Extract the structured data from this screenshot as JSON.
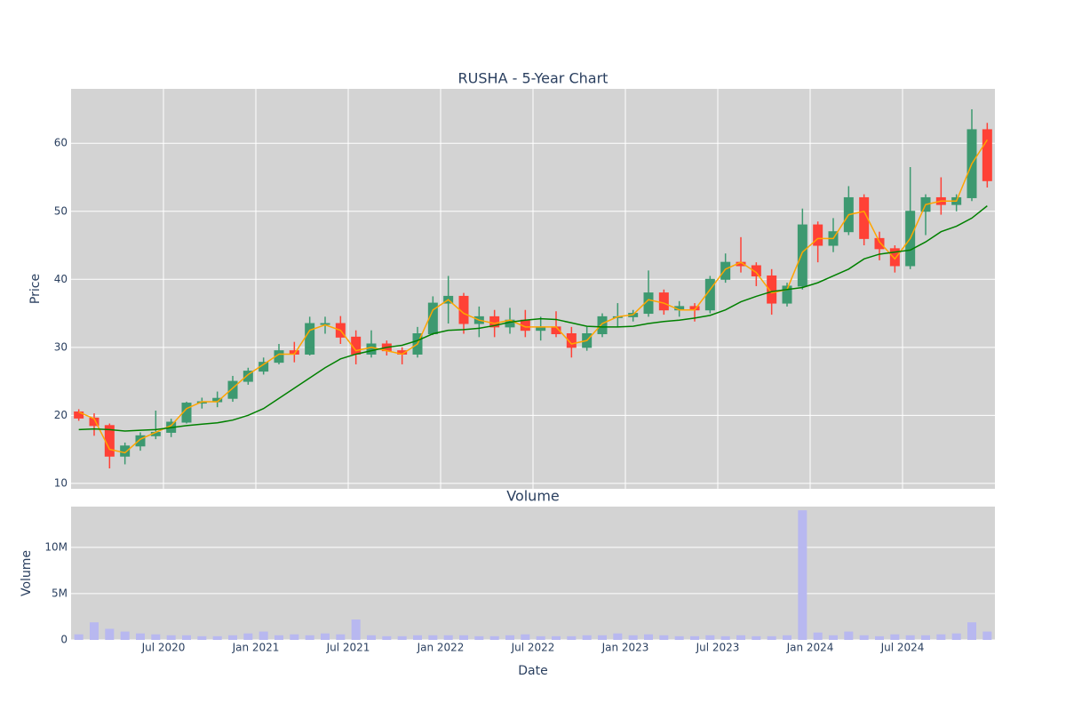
{
  "chart_data": [
    {
      "type": "candlestick",
      "title": "RUSHA - 5-Year Chart",
      "y_label": "Price",
      "x": [
        "2020-01",
        "2020-02",
        "2020-03",
        "2020-04",
        "2020-05",
        "2020-06",
        "2020-07",
        "2020-08",
        "2020-09",
        "2020-10",
        "2020-11",
        "2020-12",
        "2021-01",
        "2021-02",
        "2021-03",
        "2021-04",
        "2021-05",
        "2021-06",
        "2021-07",
        "2021-08",
        "2021-09",
        "2021-10",
        "2021-11",
        "2021-12",
        "2022-01",
        "2022-02",
        "2022-03",
        "2022-04",
        "2022-05",
        "2022-06",
        "2022-07",
        "2022-08",
        "2022-09",
        "2022-10",
        "2022-11",
        "2022-12",
        "2023-01",
        "2023-02",
        "2023-03",
        "2023-04",
        "2023-05",
        "2023-06",
        "2023-07",
        "2023-08",
        "2023-09",
        "2023-10",
        "2023-11",
        "2023-12",
        "2024-01",
        "2024-02",
        "2024-03",
        "2024-04",
        "2024-05",
        "2024-06",
        "2024-07",
        "2024-08",
        "2024-09",
        "2024-10",
        "2024-11",
        "2024-12"
      ],
      "open": [
        20.5,
        19.6,
        18.5,
        14,
        15.5,
        17,
        17.5,
        19,
        21.8,
        22,
        22.5,
        25,
        26.5,
        27.8,
        29.5,
        29,
        33.5,
        33.5,
        31.5,
        29,
        30.5,
        29.5,
        29,
        32,
        36.5,
        37.5,
        33.5,
        34.5,
        33,
        34,
        32.5,
        33,
        32,
        30,
        32,
        34.5,
        34.5,
        35,
        38,
        35.5,
        36,
        35.5,
        40,
        42.5,
        42,
        40.5,
        36.5,
        39,
        48,
        45,
        47,
        52,
        46,
        44.5,
        42,
        50,
        52,
        51,
        52,
        62
      ],
      "high": [
        20.9,
        20.3,
        18.8,
        16,
        17.5,
        20.7,
        19.5,
        22,
        22.6,
        23.5,
        25.8,
        27,
        28.5,
        30.5,
        30.8,
        34.5,
        34.5,
        34.6,
        32.5,
        32.5,
        31,
        30,
        33,
        37.5,
        40.5,
        38,
        36,
        35.5,
        35.8,
        35.5,
        34.5,
        35.3,
        33,
        33,
        35,
        36.5,
        35.5,
        41.3,
        38.5,
        36.8,
        36.5,
        40.5,
        43.8,
        46.2,
        42.5,
        41.5,
        39.5,
        50.4,
        48.5,
        49,
        53.7,
        52.5,
        47,
        45,
        56.5,
        52.5,
        55,
        52.5,
        65,
        63
      ],
      "low": [
        19.2,
        17,
        12.2,
        12.8,
        14.8,
        16.5,
        16.8,
        18.8,
        21,
        21.2,
        22,
        24.5,
        26,
        27.5,
        27.8,
        28.8,
        32,
        30.5,
        27.5,
        28.5,
        28.8,
        27.5,
        28.5,
        31.8,
        33.5,
        32,
        31.5,
        31.5,
        32,
        31.5,
        31,
        31.5,
        28.5,
        29.5,
        31.5,
        33,
        33.8,
        34.5,
        34.8,
        34.5,
        33.8,
        35,
        39.5,
        41,
        39,
        34.8,
        36,
        38.5,
        42.5,
        44,
        46.5,
        45,
        42.8,
        41,
        41.5,
        46.5,
        49.5,
        50,
        51.5,
        53.5
      ],
      "close": [
        19.6,
        18.5,
        14,
        15.5,
        17,
        17.5,
        19,
        21.8,
        22,
        22.5,
        25,
        26.5,
        27.8,
        29.5,
        29,
        33.5,
        33.5,
        31.5,
        29,
        30.5,
        29.5,
        29,
        32,
        36.5,
        37.5,
        33.5,
        34.5,
        33,
        34,
        32.5,
        33,
        32,
        30,
        32,
        34.5,
        34.5,
        35,
        38,
        35.5,
        36,
        35.5,
        40,
        42.5,
        42,
        40.5,
        36.5,
        39,
        48,
        45,
        47,
        52,
        46,
        44.5,
        42,
        50,
        52,
        51,
        52,
        62,
        54.5
      ],
      "increasing_color": "#3d9970",
      "decreasing_color": "#ff4136",
      "series": [
        {
          "color": "orange",
          "values": [
            20.5,
            19.5,
            15,
            14.5,
            16.5,
            17.5,
            18.5,
            21,
            22,
            22,
            24,
            26,
            27.5,
            29,
            29,
            32.5,
            33.3,
            32.5,
            29.5,
            30,
            29.5,
            29,
            30.5,
            35.5,
            37,
            35,
            34,
            33.5,
            34,
            33,
            33,
            33,
            30.5,
            31,
            33.5,
            34.5,
            34.8,
            37,
            36.5,
            35.5,
            35.5,
            38.5,
            41.5,
            42.5,
            41,
            38,
            38.5,
            44,
            46,
            46,
            49.5,
            50,
            45.5,
            43,
            46,
            51,
            51.5,
            51.5,
            57,
            60.5
          ]
        },
        {
          "color": "green",
          "values": [
            17.9,
            18,
            17.9,
            17.7,
            17.8,
            17.9,
            18.2,
            18.5,
            18.7,
            18.9,
            19.3,
            20,
            21,
            22.5,
            24,
            25.5,
            27,
            28.3,
            29,
            29.5,
            30,
            30.3,
            31,
            32,
            32.5,
            32.6,
            32.8,
            33.2,
            33.7,
            34,
            34.2,
            34.1,
            33.6,
            33.1,
            33,
            33,
            33.1,
            33.5,
            33.8,
            34,
            34.3,
            34.7,
            35.5,
            36.7,
            37.5,
            38.2,
            38.5,
            38.8,
            39.5,
            40.5,
            41.5,
            43,
            43.7,
            44,
            44.3,
            45.5,
            47,
            47.8,
            49,
            50.8
          ]
        }
      ],
      "xlim": [
        "2020-01-01",
        "2025-01-01"
      ],
      "ylim": [
        9.2,
        68
      ],
      "yticks": [
        10,
        20,
        30,
        40,
        50,
        60
      ],
      "grid": true
    },
    {
      "type": "bar",
      "title": "Volume",
      "y_label": "Volume",
      "x_label": "Date",
      "x": [
        "2020-01",
        "2020-02",
        "2020-03",
        "2020-04",
        "2020-05",
        "2020-06",
        "2020-07",
        "2020-08",
        "2020-09",
        "2020-10",
        "2020-11",
        "2020-12",
        "2021-01",
        "2021-02",
        "2021-03",
        "2021-04",
        "2021-05",
        "2021-06",
        "2021-07",
        "2021-08",
        "2021-09",
        "2021-10",
        "2021-11",
        "2021-12",
        "2022-01",
        "2022-02",
        "2022-03",
        "2022-04",
        "2022-05",
        "2022-06",
        "2022-07",
        "2022-08",
        "2022-09",
        "2022-10",
        "2022-11",
        "2022-12",
        "2023-01",
        "2023-02",
        "2023-03",
        "2023-04",
        "2023-05",
        "2023-06",
        "2023-07",
        "2023-08",
        "2023-09",
        "2023-10",
        "2023-11",
        "2023-12",
        "2024-01",
        "2024-02",
        "2024-03",
        "2024-04",
        "2024-05",
        "2024-06",
        "2024-07",
        "2024-08",
        "2024-09",
        "2024-10",
        "2024-11",
        "2024-12"
      ],
      "values": [
        600000,
        1900000,
        1200000,
        900000,
        700000,
        600000,
        500000,
        500000,
        400000,
        400000,
        500000,
        700000,
        900000,
        500000,
        600000,
        500000,
        700000,
        600000,
        2200000,
        500000,
        400000,
        400000,
        500000,
        500000,
        500000,
        500000,
        400000,
        400000,
        500000,
        600000,
        400000,
        400000,
        400000,
        500000,
        500000,
        700000,
        500000,
        600000,
        500000,
        400000,
        400000,
        500000,
        400000,
        500000,
        400000,
        400000,
        500000,
        14000000,
        800000,
        500000,
        900000,
        500000,
        400000,
        600000,
        500000,
        500000,
        600000,
        700000,
        1900000,
        900000
      ],
      "color": "#b8b8f0",
      "xlim": [
        "2020-01-01",
        "2025-01-01"
      ],
      "xticks": [
        {
          "value": "2020-07-01",
          "label": "Jul 2020"
        },
        {
          "value": "2021-01-01",
          "label": "Jan 2021"
        },
        {
          "value": "2021-07-01",
          "label": "Jul 2021"
        },
        {
          "value": "2022-01-01",
          "label": "Jan 2022"
        },
        {
          "value": "2022-07-01",
          "label": "Jul 2022"
        },
        {
          "value": "2023-01-01",
          "label": "Jan 2023"
        },
        {
          "value": "2023-07-01",
          "label": "Jul 2023"
        },
        {
          "value": "2024-01-01",
          "label": "Jan 2024"
        },
        {
          "value": "2024-07-01",
          "label": "Jul 2024"
        }
      ],
      "ylim": [
        0,
        14400000
      ],
      "yticks": [
        0,
        {
          "value": 5000000,
          "label": "5M"
        },
        {
          "value": 10000000,
          "label": "10M"
        }
      ],
      "grid": true
    }
  ]
}
